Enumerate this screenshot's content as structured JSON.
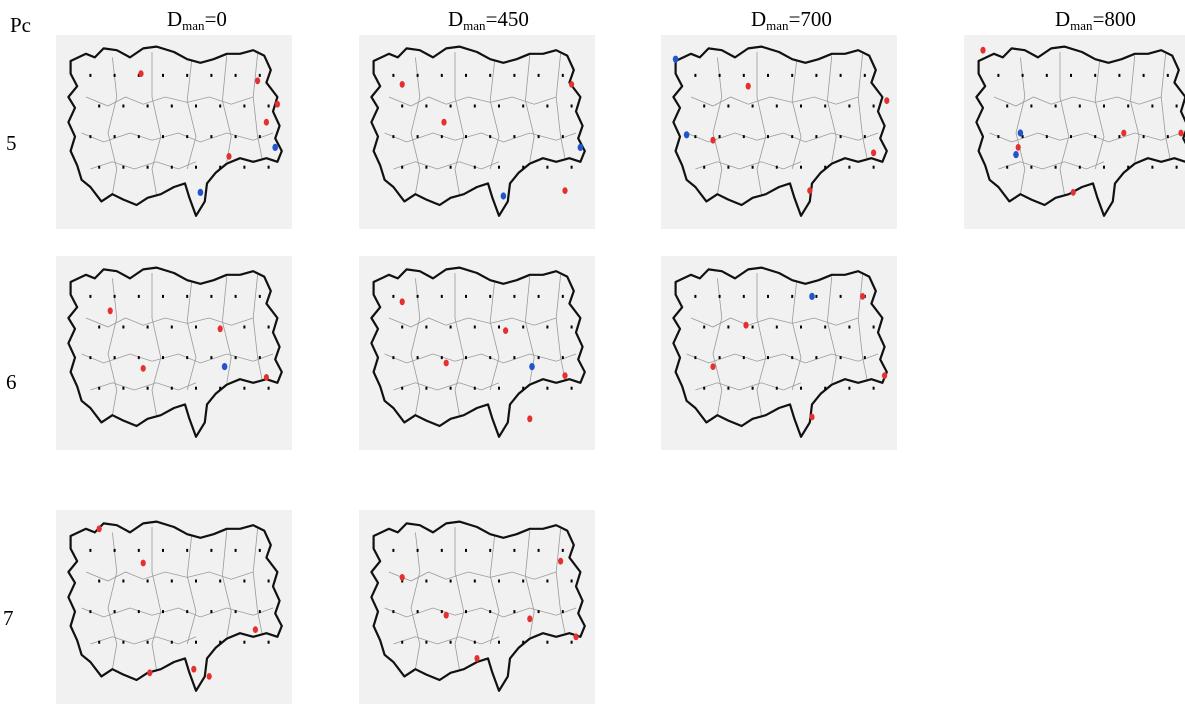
{
  "corner_label": "Pc",
  "columns": [
    {
      "prefix": "D",
      "sub": "man",
      "value": "=0"
    },
    {
      "prefix": "D",
      "sub": "man",
      "value": "=450"
    },
    {
      "prefix": "D",
      "sub": "man",
      "value": "=700"
    },
    {
      "prefix": "D",
      "sub": "man",
      "value": "=800"
    }
  ],
  "rows": [
    "5",
    "6",
    "7"
  ],
  "colors": {
    "open_site": "#e53030",
    "alt_site": "#2255cc",
    "city": "#000000",
    "background": "#f1f1f1"
  },
  "maps": [
    {
      "row": 0,
      "col": 0,
      "red": [
        [
          0.35,
          0.17
        ],
        [
          0.75,
          0.63
        ],
        [
          0.88,
          0.21
        ],
        [
          0.92,
          0.44
        ],
        [
          0.97,
          0.34
        ]
      ],
      "blue": [
        [
          0.62,
          0.83
        ],
        [
          0.96,
          0.58
        ]
      ]
    },
    {
      "row": 0,
      "col": 1,
      "red": [
        [
          0.16,
          0.23
        ],
        [
          0.35,
          0.44
        ],
        [
          0.9,
          0.82
        ],
        [
          0.93,
          0.23
        ]
      ],
      "blue": [
        [
          0.62,
          0.85
        ],
        [
          0.97,
          0.58
        ]
      ]
    },
    {
      "row": 0,
      "col": 2,
      "red": [
        [
          0.2,
          0.54
        ],
        [
          0.36,
          0.24
        ],
        [
          0.64,
          0.82
        ],
        [
          0.93,
          0.61
        ],
        [
          0.99,
          0.32
        ]
      ],
      "blue": [
        [
          0.03,
          0.09
        ],
        [
          0.08,
          0.51
        ]
      ]
    },
    {
      "row": 0,
      "col": 3,
      "red": [
        [
          0.05,
          0.04
        ],
        [
          0.21,
          0.58
        ],
        [
          0.46,
          0.83
        ],
        [
          0.69,
          0.5
        ],
        [
          0.95,
          0.5
        ]
      ],
      "blue": [
        [
          0.22,
          0.5
        ],
        [
          0.2,
          0.62
        ]
      ]
    },
    {
      "row": 1,
      "col": 0,
      "red": [
        [
          0.21,
          0.26
        ],
        [
          0.36,
          0.58
        ],
        [
          0.71,
          0.36
        ],
        [
          0.92,
          0.63
        ]
      ],
      "blue": [
        [
          0.73,
          0.57
        ]
      ]
    },
    {
      "row": 1,
      "col": 1,
      "red": [
        [
          0.16,
          0.21
        ],
        [
          0.36,
          0.55
        ],
        [
          0.63,
          0.37
        ],
        [
          0.74,
          0.86
        ],
        [
          0.9,
          0.62
        ]
      ],
      "blue": [
        [
          0.75,
          0.57
        ]
      ]
    },
    {
      "row": 1,
      "col": 2,
      "red": [
        [
          0.2,
          0.57
        ],
        [
          0.35,
          0.34
        ],
        [
          0.65,
          0.85
        ],
        [
          0.88,
          0.18
        ],
        [
          0.98,
          0.62
        ]
      ],
      "blue": [
        [
          0.65,
          0.18
        ]
      ]
    },
    {
      "row": 2,
      "col": 0,
      "red": [
        [
          0.16,
          0.06
        ],
        [
          0.36,
          0.25
        ],
        [
          0.39,
          0.86
        ],
        [
          0.59,
          0.84
        ],
        [
          0.66,
          0.88
        ],
        [
          0.87,
          0.62
        ]
      ],
      "blue": []
    },
    {
      "row": 2,
      "col": 1,
      "red": [
        [
          0.16,
          0.33
        ],
        [
          0.36,
          0.54
        ],
        [
          0.5,
          0.78
        ],
        [
          0.74,
          0.56
        ],
        [
          0.88,
          0.24
        ],
        [
          0.95,
          0.66
        ]
      ],
      "blue": []
    }
  ]
}
